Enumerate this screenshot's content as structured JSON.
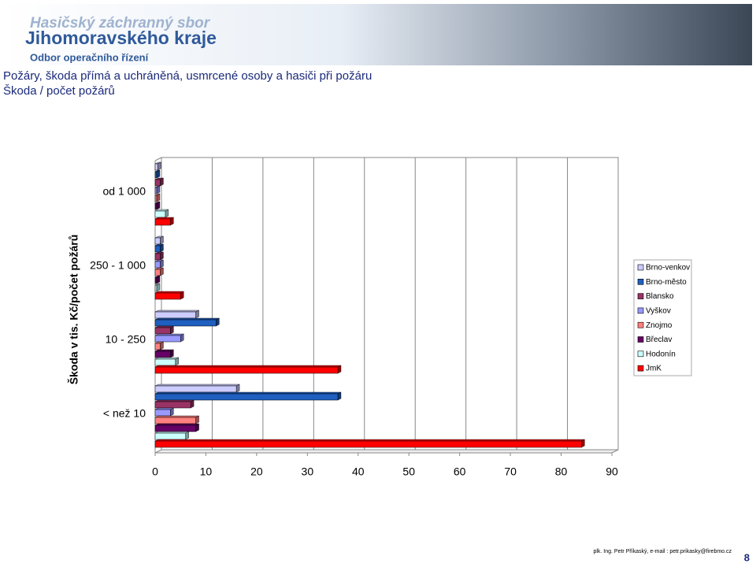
{
  "header": {
    "org_line1": "Hasičský záchranný sbor",
    "org_line2": "Jihomoravského kraje",
    "dept": "Odbor operačního řízení"
  },
  "chart_data": {
    "type": "hbar3d",
    "title": "Požáry, škoda přímá a uchráněná, usmrcené osoby a hasiči při požáru",
    "subtitle": "Škoda / počet požárů",
    "y_label": "Škoda v tis. Kč/počet požárů",
    "categories": [
      "od 1 000",
      "250 - 1 000",
      "10  - 250",
      "< než 10"
    ],
    "series": [
      {
        "name": "Brno-venkov",
        "color": "#ccccff",
        "values": [
          0.5,
          1,
          8,
          16
        ]
      },
      {
        "name": "Brno-město",
        "color": "#1f5fbf",
        "values": [
          0.3,
          1,
          12,
          36
        ]
      },
      {
        "name": "Blansko",
        "color": "#993366",
        "values": [
          1,
          1,
          3,
          7
        ]
      },
      {
        "name": "Vyškov",
        "color": "#9999ff",
        "values": [
          0.3,
          1,
          5,
          3
        ]
      },
      {
        "name": "Znojmo",
        "color": "#ff8080",
        "values": [
          0.3,
          1,
          1,
          8
        ]
      },
      {
        "name": "Břeclav",
        "color": "#660066",
        "values": [
          0.3,
          0.3,
          3,
          8
        ]
      },
      {
        "name": "Hodonín",
        "color": "#ccffff",
        "values": [
          2,
          0.3,
          4,
          6
        ]
      },
      {
        "name": "JmK",
        "color": "#ff0000",
        "values": [
          3,
          5,
          36,
          84
        ]
      }
    ],
    "xlim": [
      0,
      90
    ],
    "xticks": [
      0,
      10,
      20,
      30,
      40,
      50,
      60,
      70,
      80,
      90
    ],
    "grid": true
  },
  "footer": {
    "author": "plk. Ing. Petr Příkaský, e-mail : petr.prikasky@firebmo.cz",
    "page": "8"
  }
}
